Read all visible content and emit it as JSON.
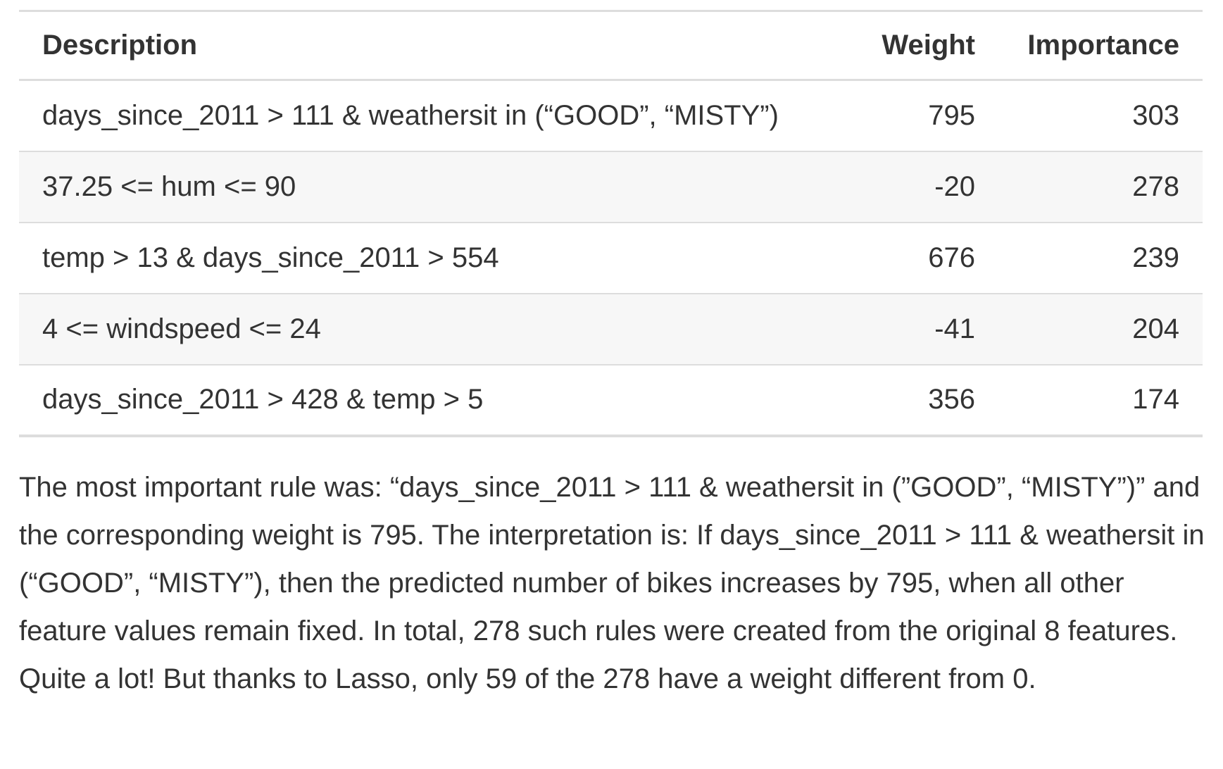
{
  "table": {
    "headers": {
      "description": "Description",
      "weight": "Weight",
      "importance": "Importance"
    },
    "rows": [
      {
        "description": "days_since_2011 > 111 & weathersit in (“GOOD”, “MISTY”)",
        "weight": "795",
        "importance": "303"
      },
      {
        "description": "37.25 <= hum <= 90",
        "weight": "-20",
        "importance": "278"
      },
      {
        "description": "temp > 13 & days_since_2011 > 554",
        "weight": "676",
        "importance": "239"
      },
      {
        "description": "4 <= windspeed <= 24",
        "weight": "-41",
        "importance": "204"
      },
      {
        "description": "days_since_2011 > 428 & temp > 5",
        "weight": "356",
        "importance": "174"
      }
    ]
  },
  "paragraph": "The most important rule was: “days_since_2011 > 111 & weathersit in (”GOOD”, “MISTY”)” and the corresponding weight is 795. The interpretation is: If days_since_2011 > 111 & weathersit in (“GOOD”, “MISTY”), then the predicted number of bikes increases by 795, when all other feature values remain fixed. In total, 278 such rules were created from the original 8 features. Quite a lot! But thanks to Lasso, only 59 of the 278 have a weight different from 0."
}
